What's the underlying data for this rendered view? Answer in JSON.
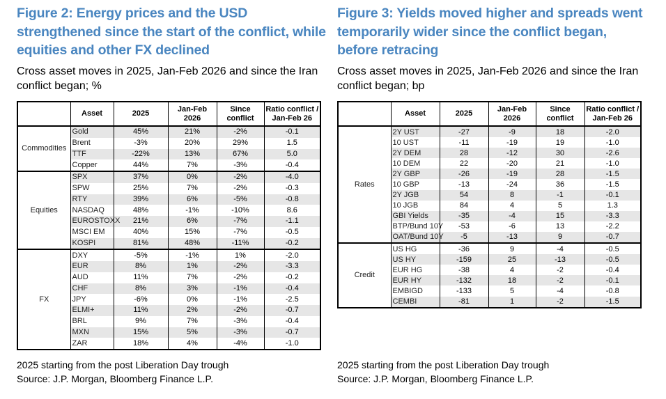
{
  "figure2": {
    "title": "Figure 2: Energy prices and the USD strengthened since the start of the conflict, while equities and other FX declined",
    "subtitle": "Cross asset moves in 2025, Jan-Feb 2026 and since the Iran conflict began; %",
    "headers": [
      "",
      "Asset",
      "2025",
      "Jan-Feb 2026",
      "Since conflict",
      "Ratio conflict / Jan-Feb 26"
    ],
    "groups": [
      {
        "name": "Commodities",
        "rows": [
          [
            "Gold",
            "45%",
            "21%",
            "-2%",
            "-0.1"
          ],
          [
            "Brent",
            "-3%",
            "20%",
            "29%",
            "1.5"
          ],
          [
            "TTF",
            "-22%",
            "13%",
            "67%",
            "5.0"
          ],
          [
            "Copper",
            "44%",
            "7%",
            "-3%",
            "-0.4"
          ]
        ]
      },
      {
        "name": "Equities",
        "rows": [
          [
            "SPX",
            "37%",
            "0%",
            "-2%",
            "-4.0"
          ],
          [
            "SPW",
            "25%",
            "7%",
            "-2%",
            "-0.3"
          ],
          [
            "RTY",
            "39%",
            "6%",
            "-5%",
            "-0.8"
          ],
          [
            "NASDAQ",
            "48%",
            "-1%",
            "-10%",
            "8.6"
          ],
          [
            "EUROSTOXX",
            "21%",
            "6%",
            "-7%",
            "-1.1"
          ],
          [
            "MSCI EM",
            "40%",
            "15%",
            "-7%",
            "-0.5"
          ],
          [
            "KOSPI",
            "81%",
            "48%",
            "-11%",
            "-0.2"
          ]
        ]
      },
      {
        "name": "FX",
        "rows": [
          [
            "DXY",
            "-5%",
            "-1%",
            "1%",
            "-2.0"
          ],
          [
            "EUR",
            "8%",
            "1%",
            "-2%",
            "-3.3"
          ],
          [
            "AUD",
            "11%",
            "7%",
            "-2%",
            "-0.2"
          ],
          [
            "CHF",
            "8%",
            "3%",
            "-1%",
            "-0.4"
          ],
          [
            "JPY",
            "-6%",
            "0%",
            "-1%",
            "-2.5"
          ],
          [
            "ELMI+",
            "11%",
            "2%",
            "-2%",
            "-0.7"
          ],
          [
            "BRL",
            "9%",
            "7%",
            "-3%",
            "-0.4"
          ],
          [
            "MXN",
            "15%",
            "5%",
            "-3%",
            "-0.7"
          ],
          [
            "ZAR",
            "18%",
            "4%",
            "-4%",
            "-1.0"
          ]
        ]
      }
    ],
    "notes": [
      "2025 starting from the post Liberation Day trough",
      "Source: J.P. Morgan, Bloomberg Finance L.P."
    ]
  },
  "figure3": {
    "title": "Figure 3: Yields moved higher and spreads went temporarily wider since the conflict began, before retracing",
    "subtitle": "Cross asset moves in 2025, Jan-Feb 2026 and since the Iran conflict began; bp",
    "headers": [
      "",
      "Asset",
      "2025",
      "Jan-Feb 2026",
      "Since conflict",
      "Ratio conflict / Jan-Feb 26"
    ],
    "groups": [
      {
        "name": "Rates",
        "rows": [
          [
            "2Y UST",
            "-27",
            "-9",
            "18",
            "-2.0"
          ],
          [
            "10 UST",
            "-11",
            "-19",
            "19",
            "-1.0"
          ],
          [
            "2Y DEM",
            "28",
            "-12",
            "30",
            "-2.6"
          ],
          [
            "10 DEM",
            "22",
            "-20",
            "21",
            "-1.0"
          ],
          [
            "2Y GBP",
            "-26",
            "-19",
            "28",
            "-1.5"
          ],
          [
            "10 GBP",
            "-13",
            "-24",
            "36",
            "-1.5"
          ],
          [
            "2Y JGB",
            "54",
            "8",
            "-1",
            "-0.1"
          ],
          [
            "10 JGB",
            "84",
            "4",
            "5",
            "1.3"
          ],
          [
            "GBI Yields",
            "-35",
            "-4",
            "15",
            "-3.3"
          ],
          [
            "BTP/Bund 10Y",
            "-53",
            "-6",
            "13",
            "-2.2"
          ],
          [
            "OAT/Bund 10Y",
            "-5",
            "-13",
            "9",
            "-0.7"
          ]
        ]
      },
      {
        "name": "Credit",
        "rows": [
          [
            "US HG",
            "-36",
            "9",
            "-4",
            "-0.5"
          ],
          [
            "US HY",
            "-159",
            "25",
            "-13",
            "-0.5"
          ],
          [
            "EUR HG",
            "-38",
            "4",
            "-2",
            "-0.4"
          ],
          [
            "EUR HY",
            "-132",
            "18",
            "-2",
            "-0.1"
          ],
          [
            "EMBIGD",
            "-133",
            "5",
            "-4",
            "-0.8"
          ],
          [
            "CEMBI",
            "-81",
            "1",
            "-2",
            "-1.5"
          ]
        ]
      }
    ],
    "notes": [
      "2025 starting from the post Liberation Day trough",
      "Source: J.P. Morgan, Bloomberg Finance L.P."
    ]
  }
}
